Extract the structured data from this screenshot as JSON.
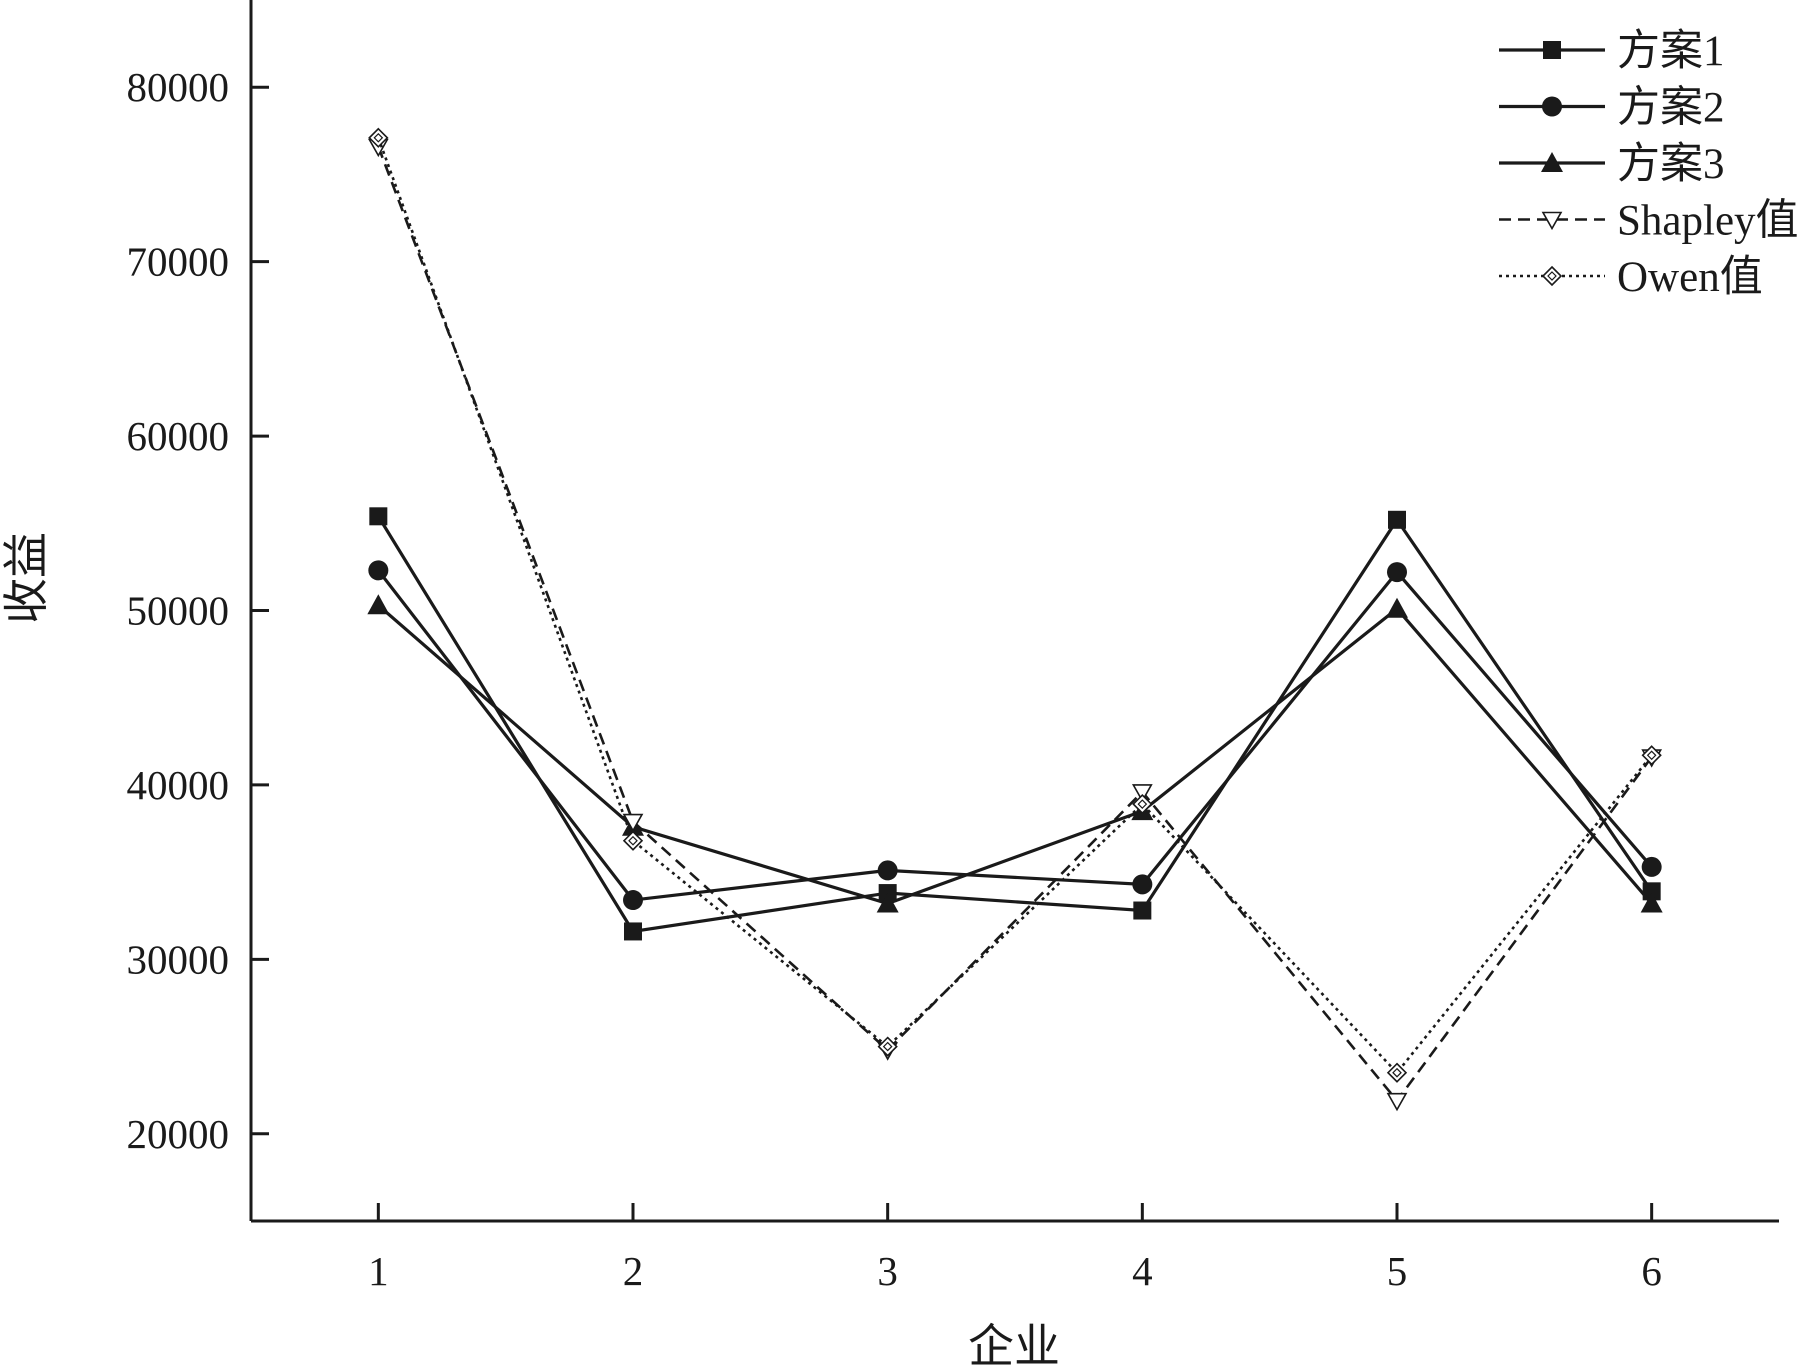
{
  "chart_data": {
    "type": "line",
    "title": "",
    "xlabel": "企业",
    "ylabel": "收益",
    "x": [
      1,
      2,
      3,
      4,
      5,
      6
    ],
    "xticks": [
      "1",
      "2",
      "3",
      "4",
      "5",
      "6"
    ],
    "yticks": [
      20000,
      30000,
      40000,
      50000,
      60000,
      70000,
      80000
    ],
    "ytick_labels": [
      "20000",
      "30000",
      "40000",
      "50000",
      "60000",
      "70000",
      "80000"
    ],
    "xlim": [
      0.5,
      6.5
    ],
    "ylim": [
      15000,
      85000
    ],
    "grid": false,
    "legend_position": "top-right",
    "series": [
      {
        "name": "方案1",
        "marker": "square",
        "dash": "solid",
        "values": [
          55400,
          31600,
          33800,
          32800,
          55200,
          33900
        ]
      },
      {
        "name": "方案2",
        "marker": "circle",
        "dash": "solid",
        "values": [
          52300,
          33400,
          35100,
          34300,
          52200,
          35300
        ]
      },
      {
        "name": "方案3",
        "marker": "triangle",
        "dash": "solid",
        "values": [
          50300,
          37600,
          33200,
          38500,
          50100,
          33200
        ]
      },
      {
        "name": "Shapley值",
        "marker": "triangle-down-open",
        "dash": "dashed",
        "values": [
          76600,
          37900,
          24800,
          39600,
          21900,
          41600
        ]
      },
      {
        "name": "Owen值",
        "marker": "diamond-open",
        "dash": "dotted",
        "values": [
          77100,
          36800,
          25000,
          38900,
          23500,
          41700
        ]
      }
    ],
    "colors": {
      "line": "#1a1a1a",
      "background": "#ffffff"
    }
  }
}
